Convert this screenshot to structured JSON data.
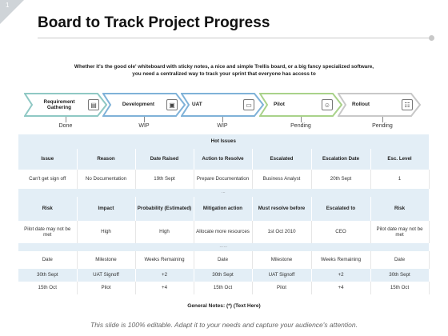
{
  "slide_number": "1",
  "title": "Board to Track Project Progress",
  "intro_line1": "Whether it's the good ole' whiteboard with sticky notes, a nice and simple Trellis board, or a big fancy specialized software,",
  "intro_line2": "you need a centralized way to track your sprint that everyone has access to",
  "steps": [
    {
      "label": "Requirement Gathering",
      "icon": "document-icon",
      "status": "Done",
      "color": "#8fc8c4"
    },
    {
      "label": "Development",
      "icon": "computer-icon",
      "status": "WIP",
      "color": "#7fb2d8"
    },
    {
      "label": "UAT",
      "icon": "monitor-icon",
      "status": "WIP",
      "color": "#7fb2d8"
    },
    {
      "label": "Pilot",
      "icon": "user-icon",
      "status": "Pending",
      "color": "#a9d28a"
    },
    {
      "label": "Rollout",
      "icon": "team-icon",
      "status": "Pending",
      "color": "#c8c8c8"
    }
  ],
  "table": {
    "section_title": "Hot Issues",
    "issues_header": [
      "Issue",
      "Reason",
      "Date Raised",
      "Action to Resolve",
      "Escalated",
      "Escalation Date",
      "Esc. Level"
    ],
    "issues_row": [
      "Can't get sign off",
      "No Documentation",
      "19th Sept",
      "Prepare Documentation",
      "Business Analyst",
      "20th Sept",
      "1"
    ],
    "separator1": "…",
    "risks_header": [
      "Risk",
      "Impact",
      "Probability (Estimated)",
      "Mitigation action",
      "Must resolve before",
      "Escalated to",
      "Risk"
    ],
    "risks_row": [
      "Pilot date may not be met",
      "High",
      "High",
      "Allocate more resources",
      "1st Oct 2010",
      "CEO",
      "Pilot date may not be met"
    ],
    "separator2": "……",
    "milestones_header": [
      "Date",
      "Milestone",
      "Weeks Remaining",
      "Date",
      "Milestone",
      "Weeks Remaining",
      "Date"
    ],
    "milestones_rows": [
      [
        "30th Sept",
        "UAT Signoff",
        "+2",
        "30th Sept",
        "UAT Signoff",
        "+2",
        "30th Sept"
      ],
      [
        "15th Oct",
        "Pilot",
        "+4",
        "15th Oct",
        "Pilot",
        "+4",
        "15th Oct"
      ]
    ]
  },
  "general_notes": "General Notes: (*) (Text Here)",
  "footer": "This slide is 100% editable. Adapt it to your needs and capture your audience's attention."
}
